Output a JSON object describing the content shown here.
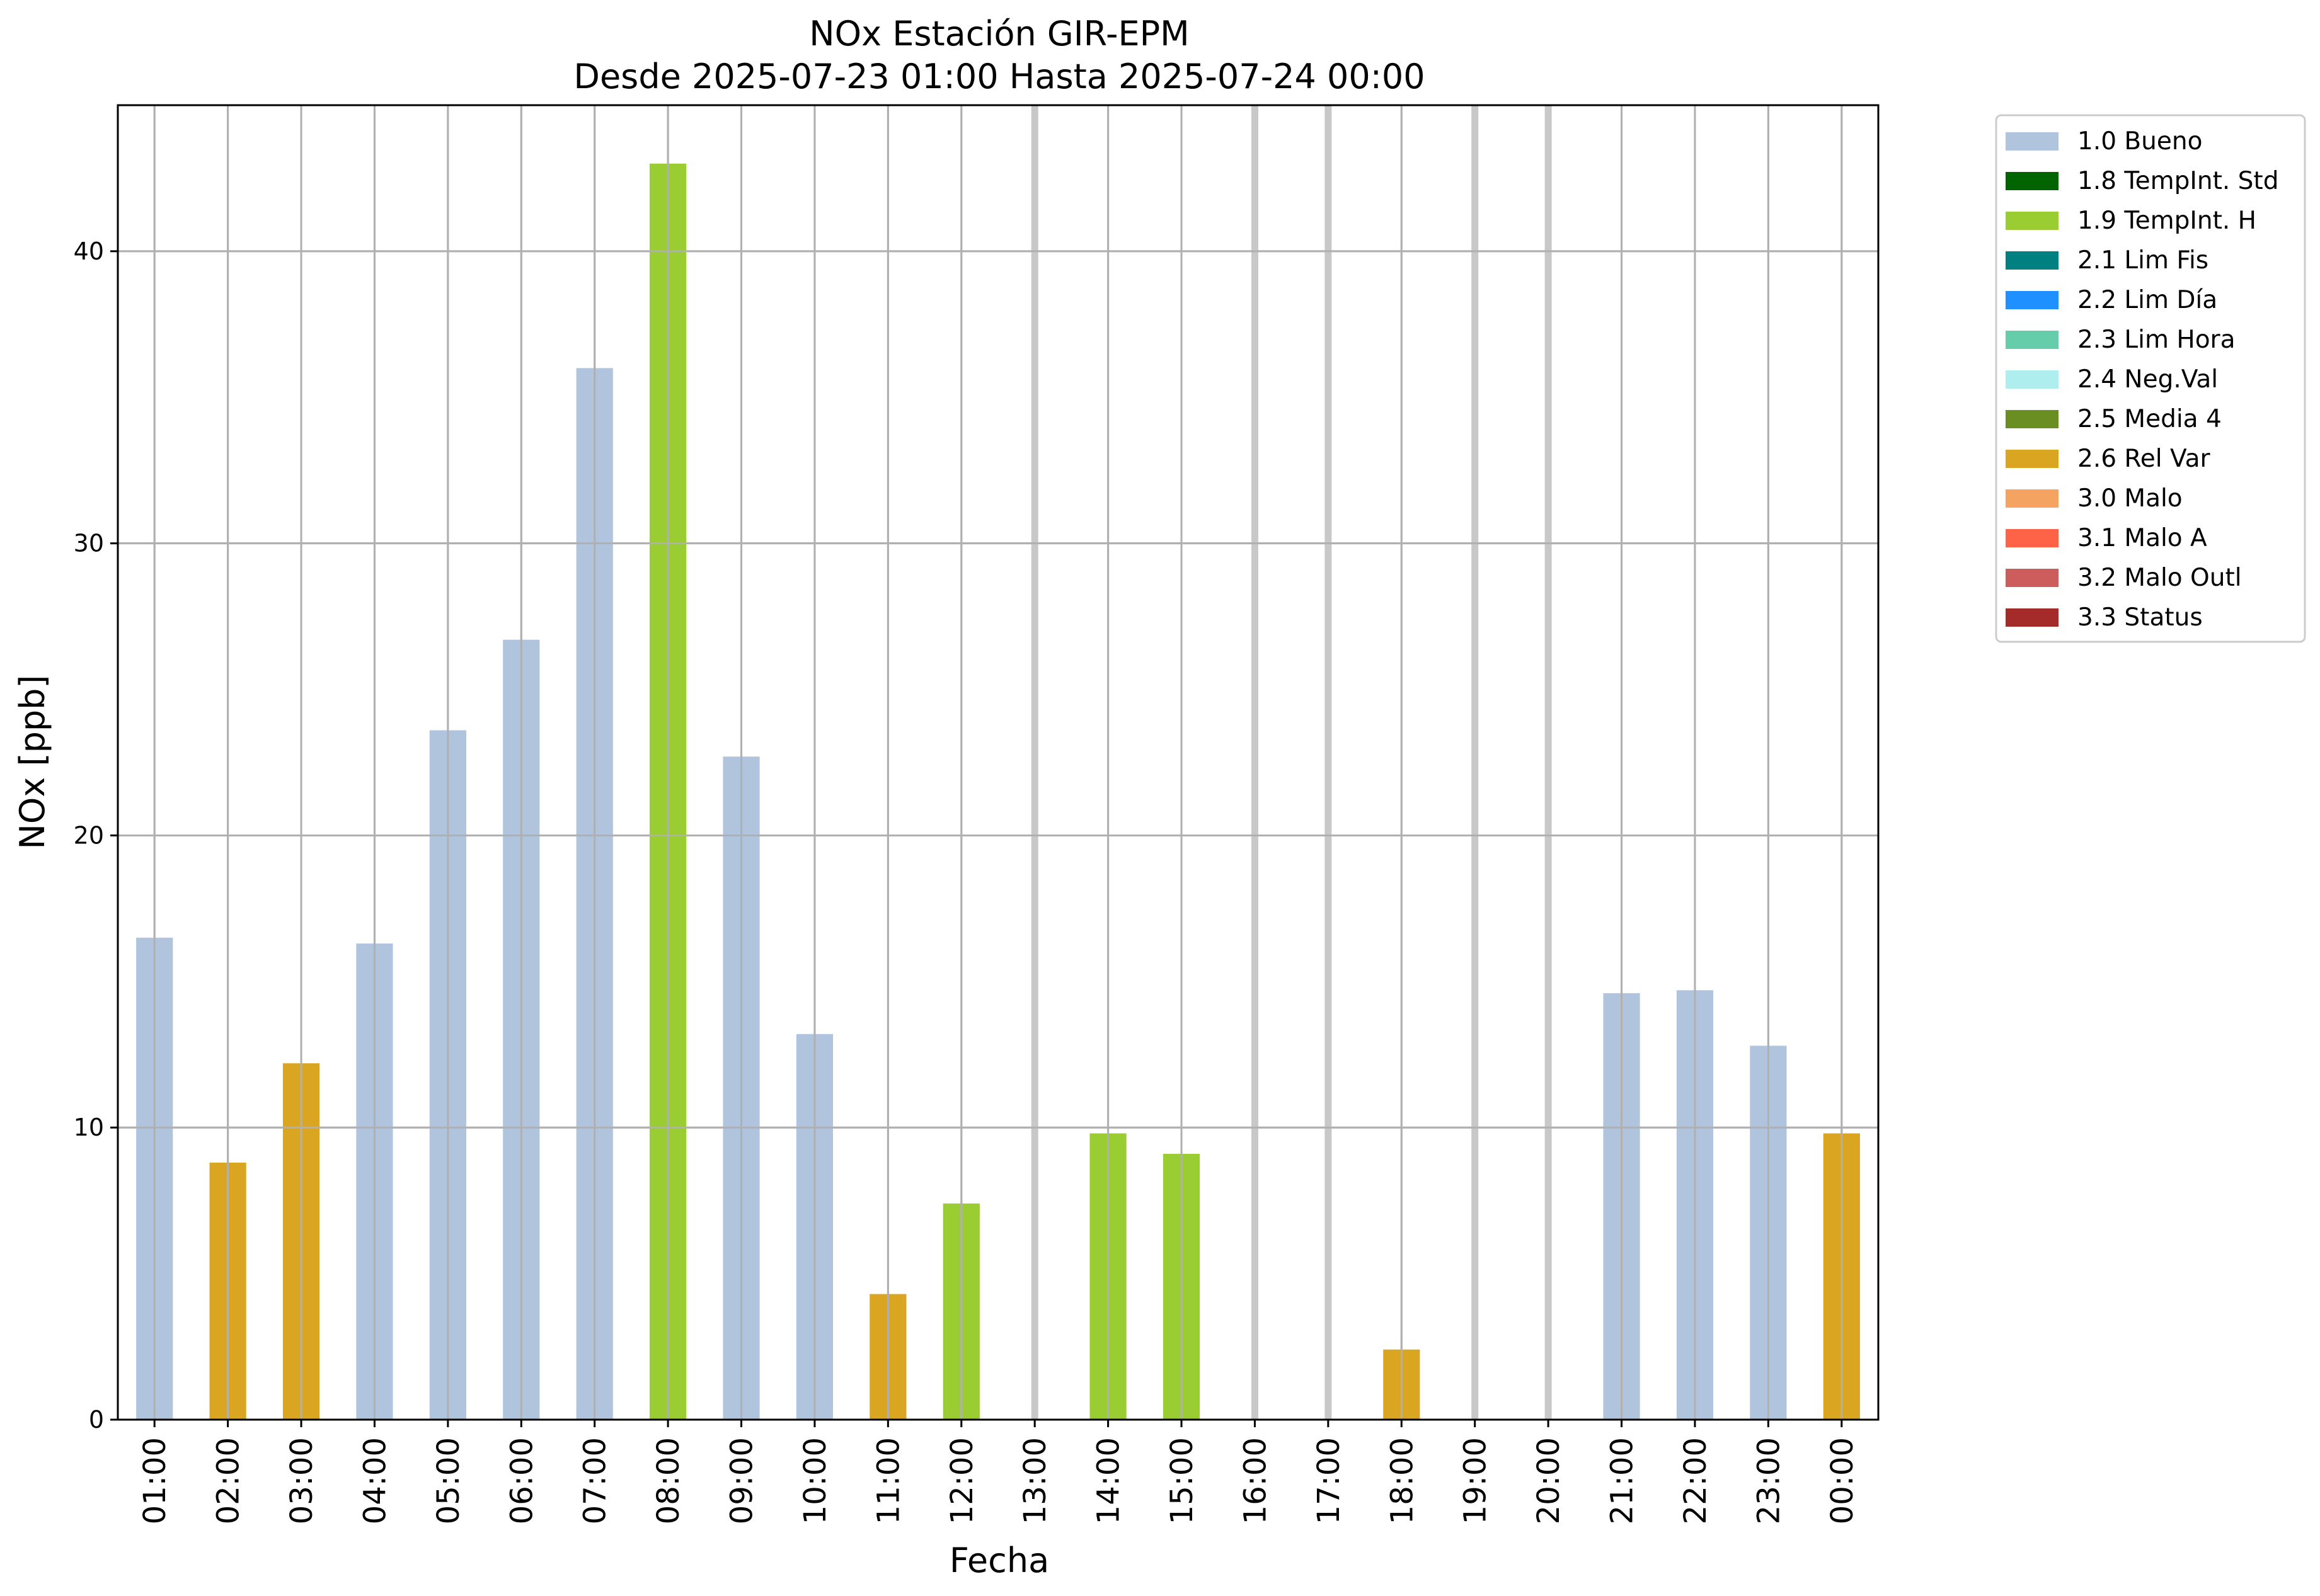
{
  "chart_data": {
    "type": "bar",
    "title": "NOx Estación GIR-EPM",
    "subtitle": "Desde 2025-07-23 01:00 Hasta 2025-07-24 00:00",
    "xlabel": "Fecha",
    "ylabel": "NOx [ppb]",
    "ylim": [
      0,
      45
    ],
    "yticks": [
      0,
      10,
      20,
      30,
      40
    ],
    "grid": true,
    "legend_position": "outside-right",
    "categories": [
      "01:00",
      "02:00",
      "03:00",
      "04:00",
      "05:00",
      "06:00",
      "07:00",
      "08:00",
      "09:00",
      "10:00",
      "11:00",
      "12:00",
      "13:00",
      "14:00",
      "15:00",
      "16:00",
      "17:00",
      "18:00",
      "19:00",
      "20:00",
      "21:00",
      "22:00",
      "23:00",
      "00:00"
    ],
    "values": [
      16.5,
      8.8,
      12.2,
      16.3,
      23.6,
      26.7,
      36.0,
      43.0,
      22.7,
      13.2,
      4.3,
      7.4,
      null,
      9.8,
      9.1,
      null,
      null,
      2.4,
      null,
      null,
      14.6,
      14.7,
      12.8,
      9.8
    ],
    "flags": [
      "1.0 Bueno",
      "2.6 Rel Var",
      "2.6 Rel Var",
      "1.0 Bueno",
      "1.0 Bueno",
      "1.0 Bueno",
      "1.0 Bueno",
      "1.9 TempInt. H",
      "1.0 Bueno",
      "1.0 Bueno",
      "2.6 Rel Var",
      "1.9 TempInt. H",
      null,
      "1.9 TempInt. H",
      "1.9 TempInt. H",
      null,
      null,
      "2.6 Rel Var",
      null,
      null,
      "1.0 Bueno",
      "1.0 Bueno",
      "1.0 Bueno",
      "2.6 Rel Var"
    ],
    "legend": [
      {
        "label": "1.0 Bueno",
        "color": "#b0c4de"
      },
      {
        "label": "1.8 TempInt. Std",
        "color": "#006400"
      },
      {
        "label": "1.9 TempInt. H",
        "color": "#9acd32"
      },
      {
        "label": "2.1 Lim Fis",
        "color": "#008080"
      },
      {
        "label": "2.2 Lim Día",
        "color": "#1e90ff"
      },
      {
        "label": "2.3 Lim Hora",
        "color": "#66cdaa"
      },
      {
        "label": "2.4 Neg.Val",
        "color": "#afeeee"
      },
      {
        "label": "2.5 Media 4",
        "color": "#6b8e23"
      },
      {
        "label": "2.6 Rel Var",
        "color": "#daa520"
      },
      {
        "label": "3.0 Malo",
        "color": "#f4a460"
      },
      {
        "label": "3.1 Malo A",
        "color": "#ff6347"
      },
      {
        "label": "3.2 Malo Outl",
        "color": "#cd5c5c"
      },
      {
        "label": "3.3 Status",
        "color": "#a52a2a"
      }
    ]
  }
}
